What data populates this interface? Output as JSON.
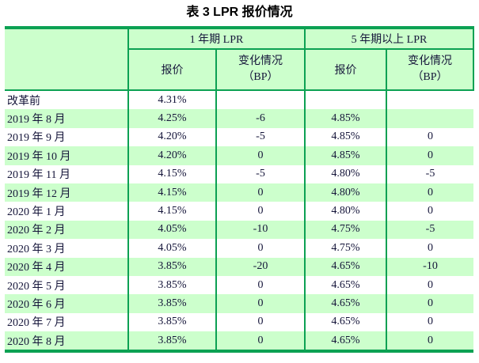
{
  "title": "表 3 LPR 报价情况",
  "colors": {
    "border_green": "#0ca153",
    "fill_light_green": "#ccffcc",
    "text": "#15153a"
  },
  "table": {
    "group_headers": {
      "one_year": "1 年期 LPR",
      "five_year": "5 年期以上 LPR"
    },
    "sub_headers": {
      "quote": "报价",
      "change_line1": "变化情况",
      "change_line2": "（BP）"
    },
    "rows": [
      {
        "period": "改革前",
        "y1_quote": "4.31%",
        "y1_change": "",
        "y5_quote": "",
        "y5_change": ""
      },
      {
        "period": "2019 年 8 月",
        "y1_quote": "4.25%",
        "y1_change": "-6",
        "y5_quote": "4.85%",
        "y5_change": ""
      },
      {
        "period": "2019 年 9 月",
        "y1_quote": "4.20%",
        "y1_change": "-5",
        "y5_quote": "4.85%",
        "y5_change": "0"
      },
      {
        "period": "2019 年 10 月",
        "y1_quote": "4.20%",
        "y1_change": "0",
        "y5_quote": "4.85%",
        "y5_change": "0"
      },
      {
        "period": "2019 年 11 月",
        "y1_quote": "4.15%",
        "y1_change": "-5",
        "y5_quote": "4.80%",
        "y5_change": "-5"
      },
      {
        "period": "2019 年 12 月",
        "y1_quote": "4.15%",
        "y1_change": "0",
        "y5_quote": "4.80%",
        "y5_change": "0"
      },
      {
        "period": "2020 年 1 月",
        "y1_quote": "4.15%",
        "y1_change": "0",
        "y5_quote": "4.80%",
        "y5_change": "0"
      },
      {
        "period": "2020 年 2 月",
        "y1_quote": "4.05%",
        "y1_change": "-10",
        "y5_quote": "4.75%",
        "y5_change": "-5"
      },
      {
        "period": "2020 年 3 月",
        "y1_quote": "4.05%",
        "y1_change": "0",
        "y5_quote": "4.75%",
        "y5_change": "0"
      },
      {
        "period": "2020 年 4 月",
        "y1_quote": "3.85%",
        "y1_change": "-20",
        "y5_quote": "4.65%",
        "y5_change": "-10"
      },
      {
        "period": "2020 年 5 月",
        "y1_quote": "3.85%",
        "y1_change": "0",
        "y5_quote": "4.65%",
        "y5_change": "0"
      },
      {
        "period": "2020 年 6 月",
        "y1_quote": "3.85%",
        "y1_change": "0",
        "y5_quote": "4.65%",
        "y5_change": "0"
      },
      {
        "period": "2020 年 7 月",
        "y1_quote": "3.85%",
        "y1_change": "0",
        "y5_quote": "4.65%",
        "y5_change": "0"
      },
      {
        "period": "2020 年 8 月",
        "y1_quote": "3.85%",
        "y1_change": "0",
        "y5_quote": "4.65%",
        "y5_change": "0"
      }
    ]
  }
}
